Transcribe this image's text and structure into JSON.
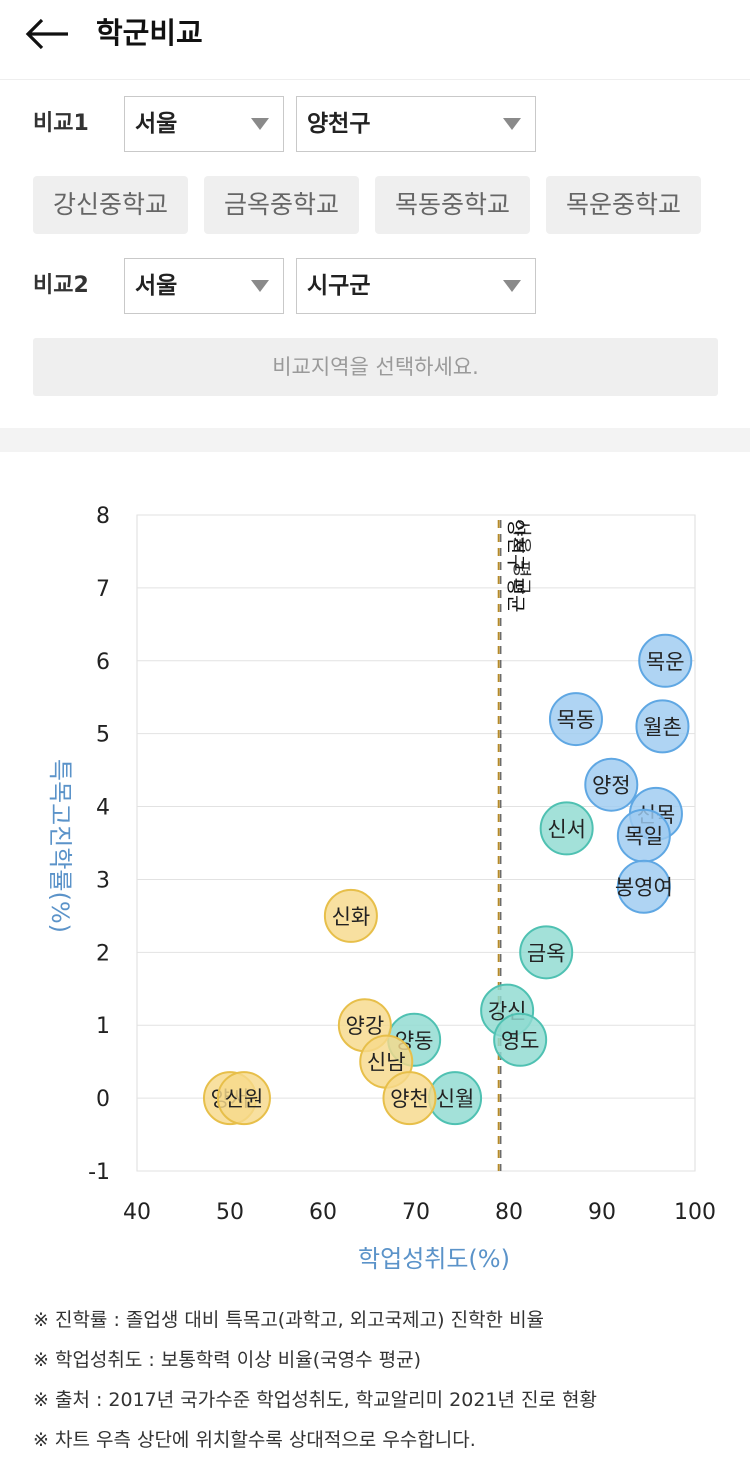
{
  "header": {
    "title": "학군비교",
    "back_icon": "arrow-left-icon"
  },
  "compare1": {
    "label": "비교1",
    "city": "서울",
    "district": "양천구",
    "schools": [
      "강신중학교",
      "금옥중학교",
      "목동중학교",
      "목운중학교"
    ]
  },
  "compare2": {
    "label": "비교2",
    "city": "서울",
    "district": "시구군",
    "placeholder": "비교지역을 선택하세요."
  },
  "chart_data": {
    "type": "scatter",
    "xlabel": "학업성취도(%)",
    "ylabel": "특목고진학률(%)",
    "xlim": [
      40,
      100
    ],
    "ylim": [
      -1,
      8
    ],
    "xticks": [
      "40",
      "50",
      "60",
      "70",
      "80",
      "90",
      "100"
    ],
    "yticks": [
      "-1",
      "0",
      "1",
      "2",
      "3",
      "4",
      "5",
      "6",
      "7",
      "8"
    ],
    "grid": true,
    "reference_line": {
      "x": 79,
      "label": "양천구 평균",
      "label2": "서울 평균"
    },
    "colors": {
      "high": "#9ecbf0",
      "mid": "#8fdad1",
      "low": "#f7d98b"
    },
    "points": [
      {
        "label": "목운",
        "x": 96.8,
        "y": 6.0,
        "group": "high"
      },
      {
        "label": "목동",
        "x": 87.2,
        "y": 5.2,
        "group": "high"
      },
      {
        "label": "월촌",
        "x": 96.5,
        "y": 5.1,
        "group": "high"
      },
      {
        "label": "양정",
        "x": 91.0,
        "y": 4.3,
        "group": "high"
      },
      {
        "label": "신목",
        "x": 95.8,
        "y": 3.9,
        "group": "high"
      },
      {
        "label": "목일",
        "x": 94.5,
        "y": 3.6,
        "group": "high"
      },
      {
        "label": "봉영여",
        "x": 94.5,
        "y": 2.9,
        "group": "high"
      },
      {
        "label": "신서",
        "x": 86.2,
        "y": 3.7,
        "group": "mid"
      },
      {
        "label": "금옥",
        "x": 84.0,
        "y": 2.0,
        "group": "mid"
      },
      {
        "label": "강신",
        "x": 79.8,
        "y": 1.2,
        "group": "mid"
      },
      {
        "label": "영도",
        "x": 81.2,
        "y": 0.8,
        "group": "mid"
      },
      {
        "label": "양동",
        "x": 69.8,
        "y": 0.8,
        "group": "mid"
      },
      {
        "label": "신월",
        "x": 74.2,
        "y": 0.0,
        "group": "mid"
      },
      {
        "label": "신화",
        "x": 63.0,
        "y": 2.5,
        "group": "low"
      },
      {
        "label": "양강",
        "x": 64.5,
        "y": 1.0,
        "group": "low"
      },
      {
        "label": "신남",
        "x": 66.8,
        "y": 0.5,
        "group": "low"
      },
      {
        "label": "양천",
        "x": 69.3,
        "y": 0.0,
        "group": "low"
      },
      {
        "label": "양서",
        "x": 50.0,
        "y": 0.0,
        "group": "low"
      },
      {
        "label": "신원",
        "x": 51.5,
        "y": 0.0,
        "group": "low"
      }
    ]
  },
  "notes": [
    "※ 진학률 : 졸업생 대비 특목고(과학고, 외고국제고) 진학한 비율",
    "※ 학업성취도 : 보통학력 이상 비율(국영수 평균)",
    "※ 출처 : 2017년 국가수준 학업성취도, 학교알리미 2021년 진로 현황",
    "※ 차트 우측 상단에 위치할수록 상대적으로 우수합니다."
  ]
}
